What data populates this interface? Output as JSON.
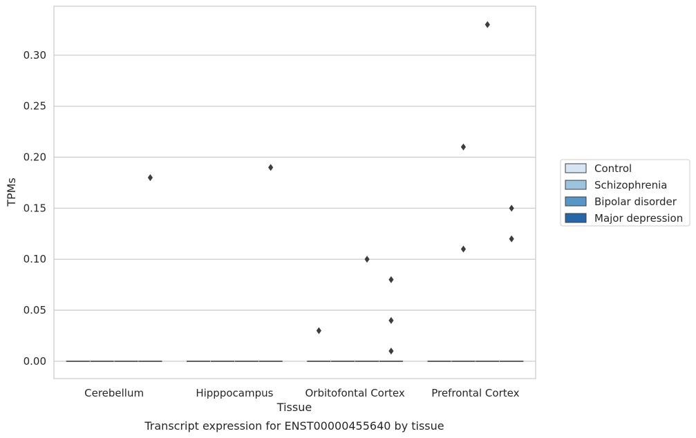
{
  "caption": "Transcript expression for ENST00000455640 by tissue",
  "chart_data": {
    "type": "box",
    "xlabel": "Tissue",
    "ylabel": "TPMs",
    "categories": [
      "Cerebellum",
      "Hipppocampus",
      "Orbitofontal Cortex",
      "Prefrontal Cortex"
    ],
    "ylim": [
      -0.017,
      0.348
    ],
    "yticks": [
      0.0,
      0.05,
      0.1,
      0.15,
      0.2,
      0.25,
      0.3
    ],
    "ytick_labels": [
      "0.00",
      "0.05",
      "0.10",
      "0.15",
      "0.20",
      "0.25",
      "0.30"
    ],
    "grid": "horizontal",
    "legend_position": "right",
    "series": [
      {
        "name": "Control",
        "color": "#d6e5f3",
        "medians": [
          0,
          0,
          0,
          0
        ]
      },
      {
        "name": "Schizophrenia",
        "color": "#9dc4de",
        "medians": [
          0,
          0,
          0,
          0
        ]
      },
      {
        "name": "Bipolar disorder",
        "color": "#5896c5",
        "medians": [
          0,
          0,
          0,
          0
        ]
      },
      {
        "name": "Major depression",
        "color": "#2766a8",
        "medians": [
          0,
          0,
          0,
          0
        ]
      }
    ],
    "outliers": [
      {
        "category": "Cerebellum",
        "series": "Major depression",
        "value": 0.18
      },
      {
        "category": "Hipppocampus",
        "series": "Major depression",
        "value": 0.19
      },
      {
        "category": "Orbitofontal Cortex",
        "series": "Control",
        "value": 0.03
      },
      {
        "category": "Orbitofontal Cortex",
        "series": "Bipolar disorder",
        "value": 0.1
      },
      {
        "category": "Orbitofontal Cortex",
        "series": "Major depression",
        "value": 0.08
      },
      {
        "category": "Orbitofontal Cortex",
        "series": "Major depression",
        "value": 0.04
      },
      {
        "category": "Orbitofontal Cortex",
        "series": "Major depression",
        "value": 0.01
      },
      {
        "category": "Prefrontal Cortex",
        "series": "Schizophrenia",
        "value": 0.21
      },
      {
        "category": "Prefrontal Cortex",
        "series": "Schizophrenia",
        "value": 0.11
      },
      {
        "category": "Prefrontal Cortex",
        "series": "Bipolar disorder",
        "value": 0.33
      },
      {
        "category": "Prefrontal Cortex",
        "series": "Major depression",
        "value": 0.15
      },
      {
        "category": "Prefrontal Cortex",
        "series": "Major depression",
        "value": 0.12
      }
    ]
  }
}
